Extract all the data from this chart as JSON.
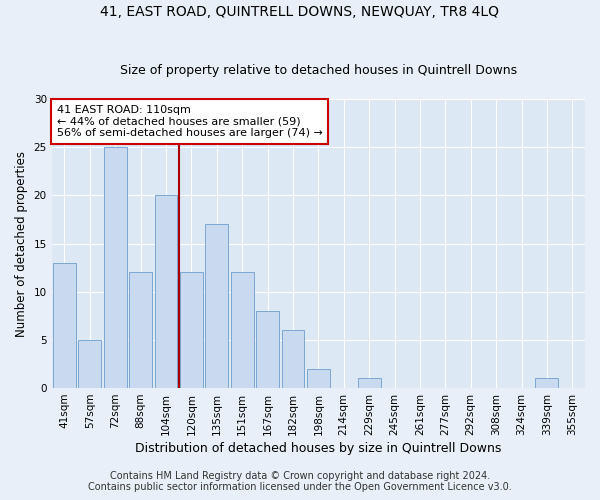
{
  "title": "41, EAST ROAD, QUINTRELL DOWNS, NEWQUAY, TR8 4LQ",
  "subtitle": "Size of property relative to detached houses in Quintrell Downs",
  "xlabel": "Distribution of detached houses by size in Quintrell Downs",
  "ylabel": "Number of detached properties",
  "bar_color": "#c9d9ef",
  "bar_edge_color": "#7ba7d4",
  "background_color": "#dde8f5",
  "fig_background_color": "#e8eff8",
  "grid_color": "#ffffff",
  "categories": [
    "41sqm",
    "57sqm",
    "72sqm",
    "88sqm",
    "104sqm",
    "120sqm",
    "135sqm",
    "151sqm",
    "167sqm",
    "182sqm",
    "198sqm",
    "214sqm",
    "229sqm",
    "245sqm",
    "261sqm",
    "277sqm",
    "292sqm",
    "308sqm",
    "324sqm",
    "339sqm",
    "355sqm"
  ],
  "values": [
    13,
    5,
    25,
    12,
    20,
    12,
    17,
    12,
    8,
    6,
    2,
    0,
    1,
    0,
    0,
    0,
    0,
    0,
    0,
    1,
    0
  ],
  "ylim": [
    0,
    30
  ],
  "yticks": [
    0,
    5,
    10,
    15,
    20,
    25,
    30
  ],
  "vline_x": 4.5,
  "vline_color": "#aa0000",
  "annotation_text": "41 EAST ROAD: 110sqm\n← 44% of detached houses are smaller (59)\n56% of semi-detached houses are larger (74) →",
  "annotation_box_color": "#ffffff",
  "annotation_box_edge_color": "#cc0000",
  "footer_line1": "Contains HM Land Registry data © Crown copyright and database right 2024.",
  "footer_line2": "Contains public sector information licensed under the Open Government Licence v3.0.",
  "title_fontsize": 10,
  "subtitle_fontsize": 9,
  "xlabel_fontsize": 9,
  "ylabel_fontsize": 8.5,
  "tick_fontsize": 7.5,
  "annotation_fontsize": 8,
  "footer_fontsize": 7
}
